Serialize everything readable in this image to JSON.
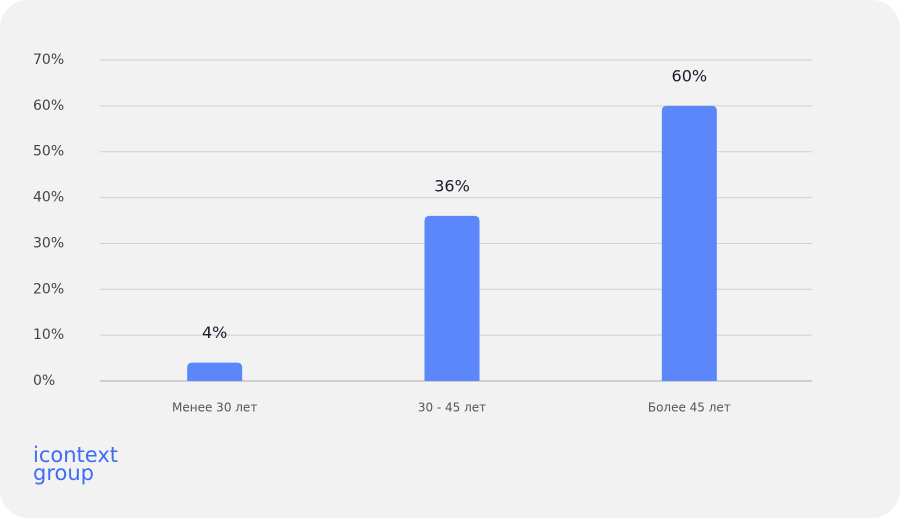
{
  "chart_data": {
    "type": "bar",
    "categories": [
      "Менее 30 лет",
      "30 - 45 лет",
      "Более 45 лет"
    ],
    "values": [
      4,
      36,
      60
    ],
    "value_labels": [
      "4%",
      "36%",
      "60%"
    ],
    "color": "#5b87fb",
    "ylim": [
      0,
      70
    ],
    "yticks": [
      {
        "value": 0,
        "label": "0%"
      },
      {
        "value": 10,
        "label": "10%"
      },
      {
        "value": 20,
        "label": "20%"
      },
      {
        "value": 30,
        "label": "30%"
      },
      {
        "value": 40,
        "label": "40%"
      },
      {
        "value": 50,
        "label": "50%"
      },
      {
        "value": 60,
        "label": "60%"
      },
      {
        "value": 70,
        "label": "70%"
      }
    ],
    "grid": true
  },
  "logo": {
    "line1": "icontext",
    "line2": "group"
  }
}
